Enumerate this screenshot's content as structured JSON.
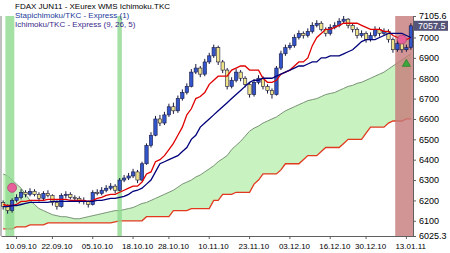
{
  "chart_data": {
    "type": "candlestick",
    "title": "FDAX JUN11 - XEurex WMS Ichimoku.TKC",
    "subtitle": [
      "Stapichimoku/TKC - Express (1)",
      "Ichimoku/TKC - Express (9, 26, 5)"
    ],
    "categories": [
      null,
      null,
      null,
      "10.09.10",
      null,
      null,
      null,
      null,
      null,
      null,
      null,
      "22.09.10",
      null,
      null,
      null,
      null,
      null,
      null,
      null,
      null,
      "05.10.10",
      null,
      null,
      null,
      null,
      null,
      null,
      null,
      null,
      "18.10.10",
      null,
      null,
      null,
      null,
      null,
      null,
      null,
      "28.10.10",
      null,
      null,
      null,
      null,
      null,
      null,
      null,
      null,
      "10.11.10",
      null,
      null,
      null,
      null,
      null,
      null,
      null,
      null,
      "23.11.10",
      null,
      null,
      null,
      null,
      null,
      null,
      null,
      null,
      "03.12.10",
      null,
      null,
      null,
      null,
      null,
      null,
      null,
      null,
      "16.12.10",
      null,
      null,
      null,
      null,
      null,
      null,
      null,
      "30.12.10",
      null,
      null,
      null,
      null,
      null,
      null,
      null,
      null,
      "13.01.11",
      null
    ],
    "series": [
      {
        "type": "area",
        "color": "#c8f2c0",
        "values": [
          6330,
          6320,
          6300,
          6280,
          6260,
          6230,
          6200,
          6180,
          6160,
          6150,
          6140,
          6130,
          6125,
          6120,
          6120,
          6115,
          6110,
          6110,
          6115,
          6120,
          6125,
          6130,
          6135,
          6140,
          6145,
          6150,
          6150,
          6155,
          6160,
          6165,
          6175,
          6185,
          6190,
          6200,
          6210,
          6220,
          6230,
          6240,
          6250,
          6265,
          6280,
          6290,
          6300,
          6315,
          6325,
          6340,
          6355,
          6370,
          6390,
          6405,
          6420,
          6450,
          6470,
          6490,
          6515,
          6540,
          6555,
          6565,
          6580,
          6590,
          6600,
          6610,
          6625,
          6640,
          6650,
          6660,
          6670,
          6680,
          6690,
          6695,
          6700,
          6710,
          6720,
          6725,
          6730,
          6740,
          6750,
          6760,
          6765,
          6775,
          6780,
          6790,
          6800,
          6810,
          6820,
          6830,
          6845,
          6860,
          6875,
          6890,
          6905,
          6920
        ]
      },
      {
        "type": "line",
        "color": "#e03a1e",
        "values": [
          6060,
          6060,
          6060,
          6070,
          6070,
          6070,
          6080,
          6080,
          6080,
          6080,
          6090,
          6090,
          6090,
          6090,
          6090,
          6090,
          6090,
          6090,
          6090,
          6090,
          6090,
          6090,
          6090,
          6090,
          6090,
          6095,
          6100,
          6100,
          6100,
          6100,
          6100,
          6100,
          6120,
          6120,
          6120,
          6120,
          6120,
          6120,
          6150,
          6150,
          6150,
          6150,
          6160,
          6160,
          6160,
          6160,
          6160,
          6200,
          6200,
          6230,
          6230,
          6230,
          6240,
          6240,
          6240,
          6240,
          6280,
          6300,
          6330,
          6330,
          6330,
          6330,
          6350,
          6380,
          6380,
          6380,
          6380,
          6400,
          6420,
          6420,
          6420,
          6440,
          6460,
          6460,
          6460,
          6460,
          6480,
          6500,
          6500,
          6500,
          6500,
          6530,
          6560,
          6560,
          6560,
          6560,
          6580,
          6590,
          6590,
          6590,
          6600,
          6600
        ]
      },
      {
        "type": "candlestick",
        "colors": [
          "#3355cc",
          "#f0e48a"
        ],
        "open": [
          6190,
          6170,
          6150,
          6200,
          6215,
          6240,
          6230,
          6245,
          6230,
          6210,
          6235,
          6225,
          6190,
          6170,
          6225,
          6230,
          6215,
          6210,
          6200,
          6195,
          6180,
          6240,
          6235,
          6250,
          6260,
          6270,
          6250,
          6300,
          6310,
          6320,
          6340,
          6300,
          6380,
          6470,
          6520,
          6600,
          6580,
          6620,
          6660,
          6640,
          6700,
          6730,
          6760,
          6830,
          6850,
          6820,
          6880,
          6910,
          6950,
          6880,
          6840,
          6760,
          6790,
          6830,
          6800,
          6770,
          6720,
          6780,
          6800,
          6760,
          6740,
          6720,
          6850,
          6920,
          6950,
          6960,
          7000,
          7020,
          7010,
          7030,
          7060,
          7070,
          7040,
          7020,
          7050,
          7060,
          7080,
          7090,
          7060,
          7040,
          7010,
          7020,
          6990,
          7010,
          7040,
          7020,
          7030,
          6990,
          6940,
          6970,
          6940,
          6950
        ],
        "high": [
          6200,
          6180,
          6210,
          6230,
          6255,
          6250,
          6260,
          6255,
          6240,
          6245,
          6250,
          6230,
          6200,
          6235,
          6245,
          6240,
          6225,
          6220,
          6215,
          6200,
          6250,
          6255,
          6265,
          6275,
          6285,
          6280,
          6310,
          6325,
          6335,
          6355,
          6350,
          6390,
          6480,
          6535,
          6615,
          6620,
          6635,
          6675,
          6680,
          6715,
          6745,
          6775,
          6845,
          6870,
          6860,
          6895,
          6925,
          6965,
          6960,
          6890,
          6850,
          6805,
          6845,
          6840,
          6810,
          6780,
          6795,
          6815,
          6810,
          6770,
          6750,
          6860,
          6935,
          6965,
          6975,
          7015,
          7035,
          7030,
          7045,
          7075,
          7085,
          7080,
          7050,
          7065,
          7075,
          7095,
          7105.6,
          7095,
          7070,
          7050,
          7035,
          7030,
          7025,
          7055,
          7050,
          7045,
          7040,
          7000,
          6985,
          6980,
          6965,
          7070
        ],
        "low": [
          6155,
          6135,
          6140,
          6190,
          6205,
          6215,
          6220,
          6220,
          6195,
          6200,
          6215,
          6175,
          6155,
          6165,
          6210,
          6205,
          6195,
          6185,
          6180,
          6165,
          6175,
          6225,
          6225,
          6240,
          6250,
          6235,
          6245,
          6290,
          6300,
          6310,
          6285,
          6295,
          6375,
          6460,
          6515,
          6565,
          6570,
          6610,
          6625,
          6630,
          6690,
          6720,
          6755,
          6820,
          6805,
          6810,
          6870,
          6900,
          6865,
          6825,
          6745,
          6750,
          6780,
          6785,
          6755,
          6705,
          6710,
          6770,
          6745,
          6725,
          6700,
          6715,
          6840,
          6910,
          6940,
          6950,
          6990,
          6995,
          7000,
          7020,
          7050,
          7030,
          7005,
          7010,
          7040,
          7050,
          7070,
          7045,
          7025,
          6995,
          7000,
          6975,
          6980,
          7000,
          7005,
          7010,
          6975,
          6925,
          6930,
          6925,
          6930,
          6940
        ],
        "close": [
          6170,
          6150,
          6200,
          6215,
          6240,
          6230,
          6245,
          6230,
          6210,
          6235,
          6225,
          6190,
          6170,
          6225,
          6230,
          6215,
          6210,
          6200,
          6195,
          6180,
          6240,
          6235,
          6250,
          6260,
          6270,
          6250,
          6300,
          6310,
          6320,
          6340,
          6300,
          6380,
          6470,
          6520,
          6600,
          6580,
          6620,
          6660,
          6640,
          6700,
          6730,
          6760,
          6830,
          6850,
          6820,
          6880,
          6910,
          6950,
          6880,
          6840,
          6760,
          6790,
          6830,
          6800,
          6770,
          6720,
          6780,
          6800,
          6760,
          6740,
          6720,
          6850,
          6920,
          6950,
          6960,
          7000,
          7020,
          7010,
          7030,
          7060,
          7070,
          7040,
          7020,
          7050,
          7060,
          7080,
          7090,
          7060,
          7040,
          7010,
          7020,
          6990,
          7010,
          7040,
          7020,
          7030,
          6990,
          6940,
          6970,
          6940,
          6950,
          7057.5
        ]
      },
      {
        "type": "line",
        "color": "#e00000",
        "values": [
          6180,
          6175,
          6175,
          6180,
          6195,
          6195,
          6200,
          6200,
          6200,
          6200,
          6205,
          6205,
          6205,
          6205,
          6205,
          6200,
          6200,
          6200,
          6200,
          6195,
          6200,
          6210,
          6215,
          6225,
          6230,
          6230,
          6240,
          6250,
          6260,
          6270,
          6270,
          6290,
          6330,
          6340,
          6390,
          6400,
          6420,
          6450,
          6480,
          6520,
          6560,
          6620,
          6650,
          6700,
          6710,
          6730,
          6770,
          6790,
          6810,
          6810,
          6810,
          6840,
          6850,
          6860,
          6860,
          6840,
          6840,
          6840,
          6800,
          6780,
          6780,
          6790,
          6820,
          6830,
          6840,
          6860,
          6880,
          6880,
          6900,
          6960,
          7000,
          7020,
          7040,
          7040,
          7050,
          7060,
          7070,
          7070,
          7070,
          7070,
          7060,
          7050,
          7040,
          7040,
          7040,
          7030,
          7030,
          7010,
          7000,
          6990,
          6990,
          7000
        ]
      },
      {
        "type": "line",
        "color": "#00007a",
        "values": [
          6170,
          6170,
          6175,
          6175,
          6180,
          6185,
          6190,
          6190,
          6190,
          6190,
          6190,
          6195,
          6195,
          6195,
          6195,
          6195,
          6195,
          6195,
          6195,
          6195,
          6195,
          6200,
          6200,
          6205,
          6210,
          6210,
          6215,
          6220,
          6230,
          6245,
          6250,
          6260,
          6280,
          6300,
          6340,
          6380,
          6390,
          6400,
          6410,
          6420,
          6440,
          6460,
          6500,
          6520,
          6560,
          6580,
          6600,
          6620,
          6640,
          6660,
          6680,
          6700,
          6720,
          6740,
          6760,
          6780,
          6790,
          6790,
          6800,
          6800,
          6800,
          6810,
          6820,
          6830,
          6840,
          6850,
          6860,
          6860,
          6870,
          6880,
          6880,
          6900,
          6900,
          6910,
          6910,
          6910,
          6920,
          6930,
          6940,
          6960,
          6980,
          6990,
          6990,
          6990,
          7000,
          7010,
          7020,
          7020,
          7020,
          7020,
          7010,
          7000
        ]
      }
    ],
    "bands": [
      {
        "from": 1,
        "to": 2,
        "color": "#8fd88f"
      },
      {
        "from": 26,
        "to": 26,
        "color": "#8fd88f"
      },
      {
        "from": 88,
        "to": 91,
        "color": "#c77b7b"
      }
    ],
    "markers": [
      {
        "x": 2,
        "y": 6262,
        "color": "#e8609a",
        "marker": "circle"
      },
      {
        "x": 89,
        "y": 6990,
        "color": "#e8609a",
        "marker": "circle"
      },
      {
        "x": 90,
        "y": 6870,
        "color": "#3ca83c",
        "marker": "triangle"
      }
    ],
    "last_price": 7057.5,
    "ylim": [
      6025.3,
      7105.6
    ],
    "yticks": [
      6025.3,
      6100,
      6200,
      6300,
      6400,
      6500,
      6600,
      6700,
      6800,
      6900,
      7000,
      7105.6
    ]
  }
}
